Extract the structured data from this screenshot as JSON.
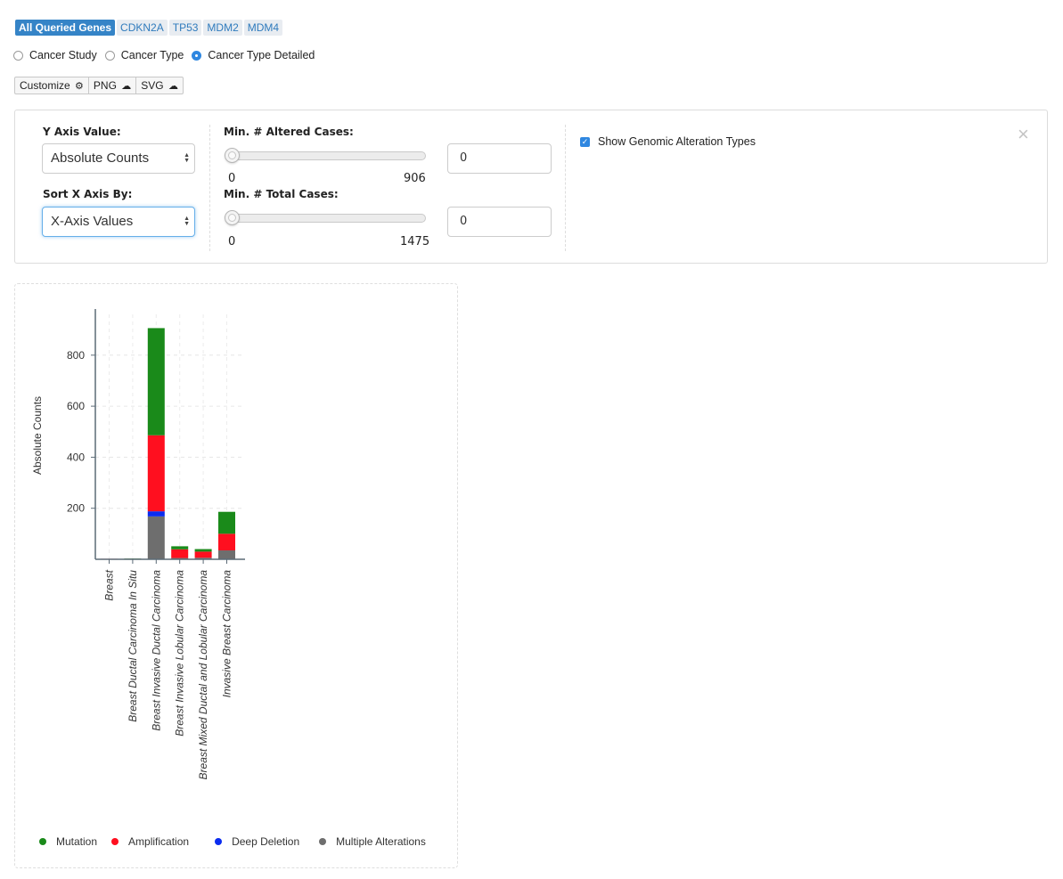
{
  "gene_tabs": [
    "All Queried Genes",
    "CDKN2A",
    "TP53",
    "MDM2",
    "MDM4"
  ],
  "grouping": {
    "options": [
      "Cancer Study",
      "Cancer Type",
      "Cancer Type Detailed"
    ],
    "selected": "Cancer Type Detailed"
  },
  "toolbar": {
    "customize": "Customize",
    "png": "PNG",
    "svg": "SVG"
  },
  "settings": {
    "y_axis_label": "Y Axis Value:",
    "y_axis_value": "Absolute Counts",
    "sort_label": "Sort X Axis By:",
    "sort_value": "X-Axis Values",
    "min_altered_label": "Min. # Altered Cases:",
    "min_altered": {
      "value": "0",
      "min": "0",
      "max": "906"
    },
    "min_total_label": "Min. # Total Cases:",
    "min_total": {
      "value": "0",
      "min": "0",
      "max": "1475"
    },
    "show_alteration_types_label": "Show Genomic Alteration Types",
    "show_alteration_types": true
  },
  "colors": {
    "accent": "#3584c7",
    "mutation": "#1a8a1a",
    "amplification": "#ff0f1f",
    "deep_deletion": "#0a2cf0",
    "multiple": "#6e6e6e",
    "axis": "#5c6b77"
  },
  "icons": {
    "customize": "gear-icon",
    "png": "cloud-download-icon",
    "svg": "cloud-download-icon",
    "close": "close-icon"
  },
  "chart_data": {
    "type": "bar",
    "stacked": true,
    "ylabel": "Absolute Counts",
    "xlabel": "",
    "ylim": [
      0,
      960
    ],
    "yticks": [
      200,
      400,
      600,
      800
    ],
    "grid": true,
    "legend_position": "bottom",
    "categories": [
      "Breast",
      "Breast Ductal Carcinoma In Situ",
      "Breast Invasive Ductal Carcinoma",
      "Breast Invasive Lobular Carcinoma",
      "Breast Mixed Ductal and Lobular Carcinoma",
      "Invasive Breast Carcinoma"
    ],
    "series": [
      {
        "name": "Multiple Alterations",
        "color": "#6e6e6e",
        "values": [
          1,
          1,
          168,
          5,
          6,
          35
        ]
      },
      {
        "name": "Deep Deletion",
        "color": "#0a2cf0",
        "values": [
          0,
          0,
          20,
          0,
          0,
          0
        ]
      },
      {
        "name": "Amplification",
        "color": "#ff0f1f",
        "values": [
          1,
          1,
          298,
          34,
          24,
          65
        ]
      },
      {
        "name": "Mutation",
        "color": "#1a8a1a",
        "values": [
          0,
          1,
          420,
          12,
          10,
          86
        ]
      }
    ],
    "legend": [
      "Mutation",
      "Amplification",
      "Deep Deletion",
      "Multiple Alterations"
    ]
  }
}
